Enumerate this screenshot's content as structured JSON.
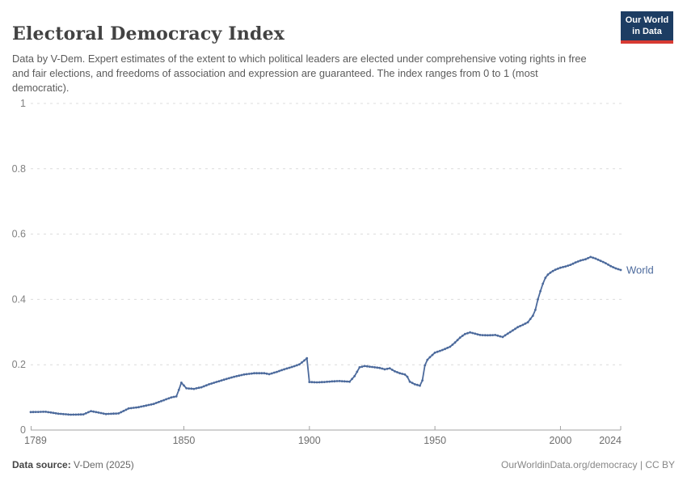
{
  "header": {
    "logo": {
      "line1": "Our World",
      "line2": "in Data",
      "bg_color": "#1d3d63",
      "accent_color": "#d73a33"
    }
  },
  "chart_data": {
    "type": "line",
    "title": "Electoral Democracy Index",
    "subtitle": "Data by V-Dem. Expert estimates of the extent to which political leaders are elected under comprehensive voting rights in free and fair elections, and freedoms of association and expression are guaranteed. The index ranges from 0 to 1 (most democratic).",
    "xlabel": "",
    "ylabel": "",
    "xlim": [
      1789,
      2024
    ],
    "ylim": [
      0,
      1
    ],
    "grid": "horizontal-dashed",
    "legend_position": "end-of-line",
    "yticks": [
      0,
      0.2,
      0.4,
      0.6,
      0.8,
      1
    ],
    "ytick_labels": [
      "0",
      "0.2",
      "0.4",
      "0.6",
      "0.8",
      "1"
    ],
    "xticks": [
      1789,
      1850,
      1900,
      1950,
      2000,
      2024
    ],
    "xtick_labels": [
      "1789",
      "1850",
      "1900",
      "1950",
      "2000",
      "2024"
    ],
    "series": [
      {
        "name": "World",
        "color": "#4C6A9C",
        "points": [
          [
            1789,
            0.055
          ],
          [
            1795,
            0.056
          ],
          [
            1800,
            0.05
          ],
          [
            1805,
            0.047
          ],
          [
            1810,
            0.048
          ],
          [
            1813,
            0.058
          ],
          [
            1819,
            0.049
          ],
          [
            1824,
            0.051
          ],
          [
            1828,
            0.066
          ],
          [
            1832,
            0.07
          ],
          [
            1838,
            0.08
          ],
          [
            1845,
            0.1
          ],
          [
            1847,
            0.103
          ],
          [
            1848,
            0.123
          ],
          [
            1849,
            0.145
          ],
          [
            1851,
            0.128
          ],
          [
            1854,
            0.126
          ],
          [
            1857,
            0.131
          ],
          [
            1860,
            0.14
          ],
          [
            1865,
            0.152
          ],
          [
            1870,
            0.163
          ],
          [
            1874,
            0.17
          ],
          [
            1878,
            0.174
          ],
          [
            1882,
            0.174
          ],
          [
            1884,
            0.171
          ],
          [
            1887,
            0.178
          ],
          [
            1890,
            0.186
          ],
          [
            1893,
            0.193
          ],
          [
            1896,
            0.201
          ],
          [
            1898,
            0.213
          ],
          [
            1899,
            0.22
          ],
          [
            1900,
            0.147
          ],
          [
            1903,
            0.146
          ],
          [
            1906,
            0.147
          ],
          [
            1909,
            0.149
          ],
          [
            1912,
            0.15
          ],
          [
            1916,
            0.148
          ],
          [
            1918,
            0.165
          ],
          [
            1920,
            0.192
          ],
          [
            1922,
            0.196
          ],
          [
            1925,
            0.193
          ],
          [
            1928,
            0.19
          ],
          [
            1930,
            0.186
          ],
          [
            1932,
            0.189
          ],
          [
            1934,
            0.18
          ],
          [
            1936,
            0.174
          ],
          [
            1938,
            0.17
          ],
          [
            1939,
            0.163
          ],
          [
            1940,
            0.148
          ],
          [
            1942,
            0.14
          ],
          [
            1944,
            0.136
          ],
          [
            1945,
            0.152
          ],
          [
            1946,
            0.198
          ],
          [
            1947,
            0.215
          ],
          [
            1948,
            0.223
          ],
          [
            1950,
            0.237
          ],
          [
            1953,
            0.245
          ],
          [
            1956,
            0.255
          ],
          [
            1958,
            0.268
          ],
          [
            1960,
            0.283
          ],
          [
            1962,
            0.294
          ],
          [
            1964,
            0.299
          ],
          [
            1966,
            0.295
          ],
          [
            1968,
            0.291
          ],
          [
            1971,
            0.29
          ],
          [
            1974,
            0.291
          ],
          [
            1977,
            0.285
          ],
          [
            1979,
            0.295
          ],
          [
            1981,
            0.305
          ],
          [
            1983,
            0.315
          ],
          [
            1985,
            0.322
          ],
          [
            1987,
            0.33
          ],
          [
            1989,
            0.35
          ],
          [
            1990,
            0.368
          ],
          [
            1991,
            0.4
          ],
          [
            1992,
            0.425
          ],
          [
            1993,
            0.448
          ],
          [
            1994,
            0.466
          ],
          [
            1995,
            0.476
          ],
          [
            1996,
            0.482
          ],
          [
            1997,
            0.487
          ],
          [
            1998,
            0.491
          ],
          [
            2000,
            0.497
          ],
          [
            2002,
            0.501
          ],
          [
            2004,
            0.506
          ],
          [
            2006,
            0.513
          ],
          [
            2008,
            0.519
          ],
          [
            2010,
            0.523
          ],
          [
            2012,
            0.53
          ],
          [
            2014,
            0.525
          ],
          [
            2016,
            0.518
          ],
          [
            2018,
            0.511
          ],
          [
            2020,
            0.502
          ],
          [
            2022,
            0.495
          ],
          [
            2024,
            0.49
          ]
        ]
      }
    ]
  },
  "footer": {
    "source_label": "Data source:",
    "source_value": " V-Dem (2025)",
    "url": "OurWorldinData.org/democracy",
    "separator": " | ",
    "license": "CC BY"
  }
}
